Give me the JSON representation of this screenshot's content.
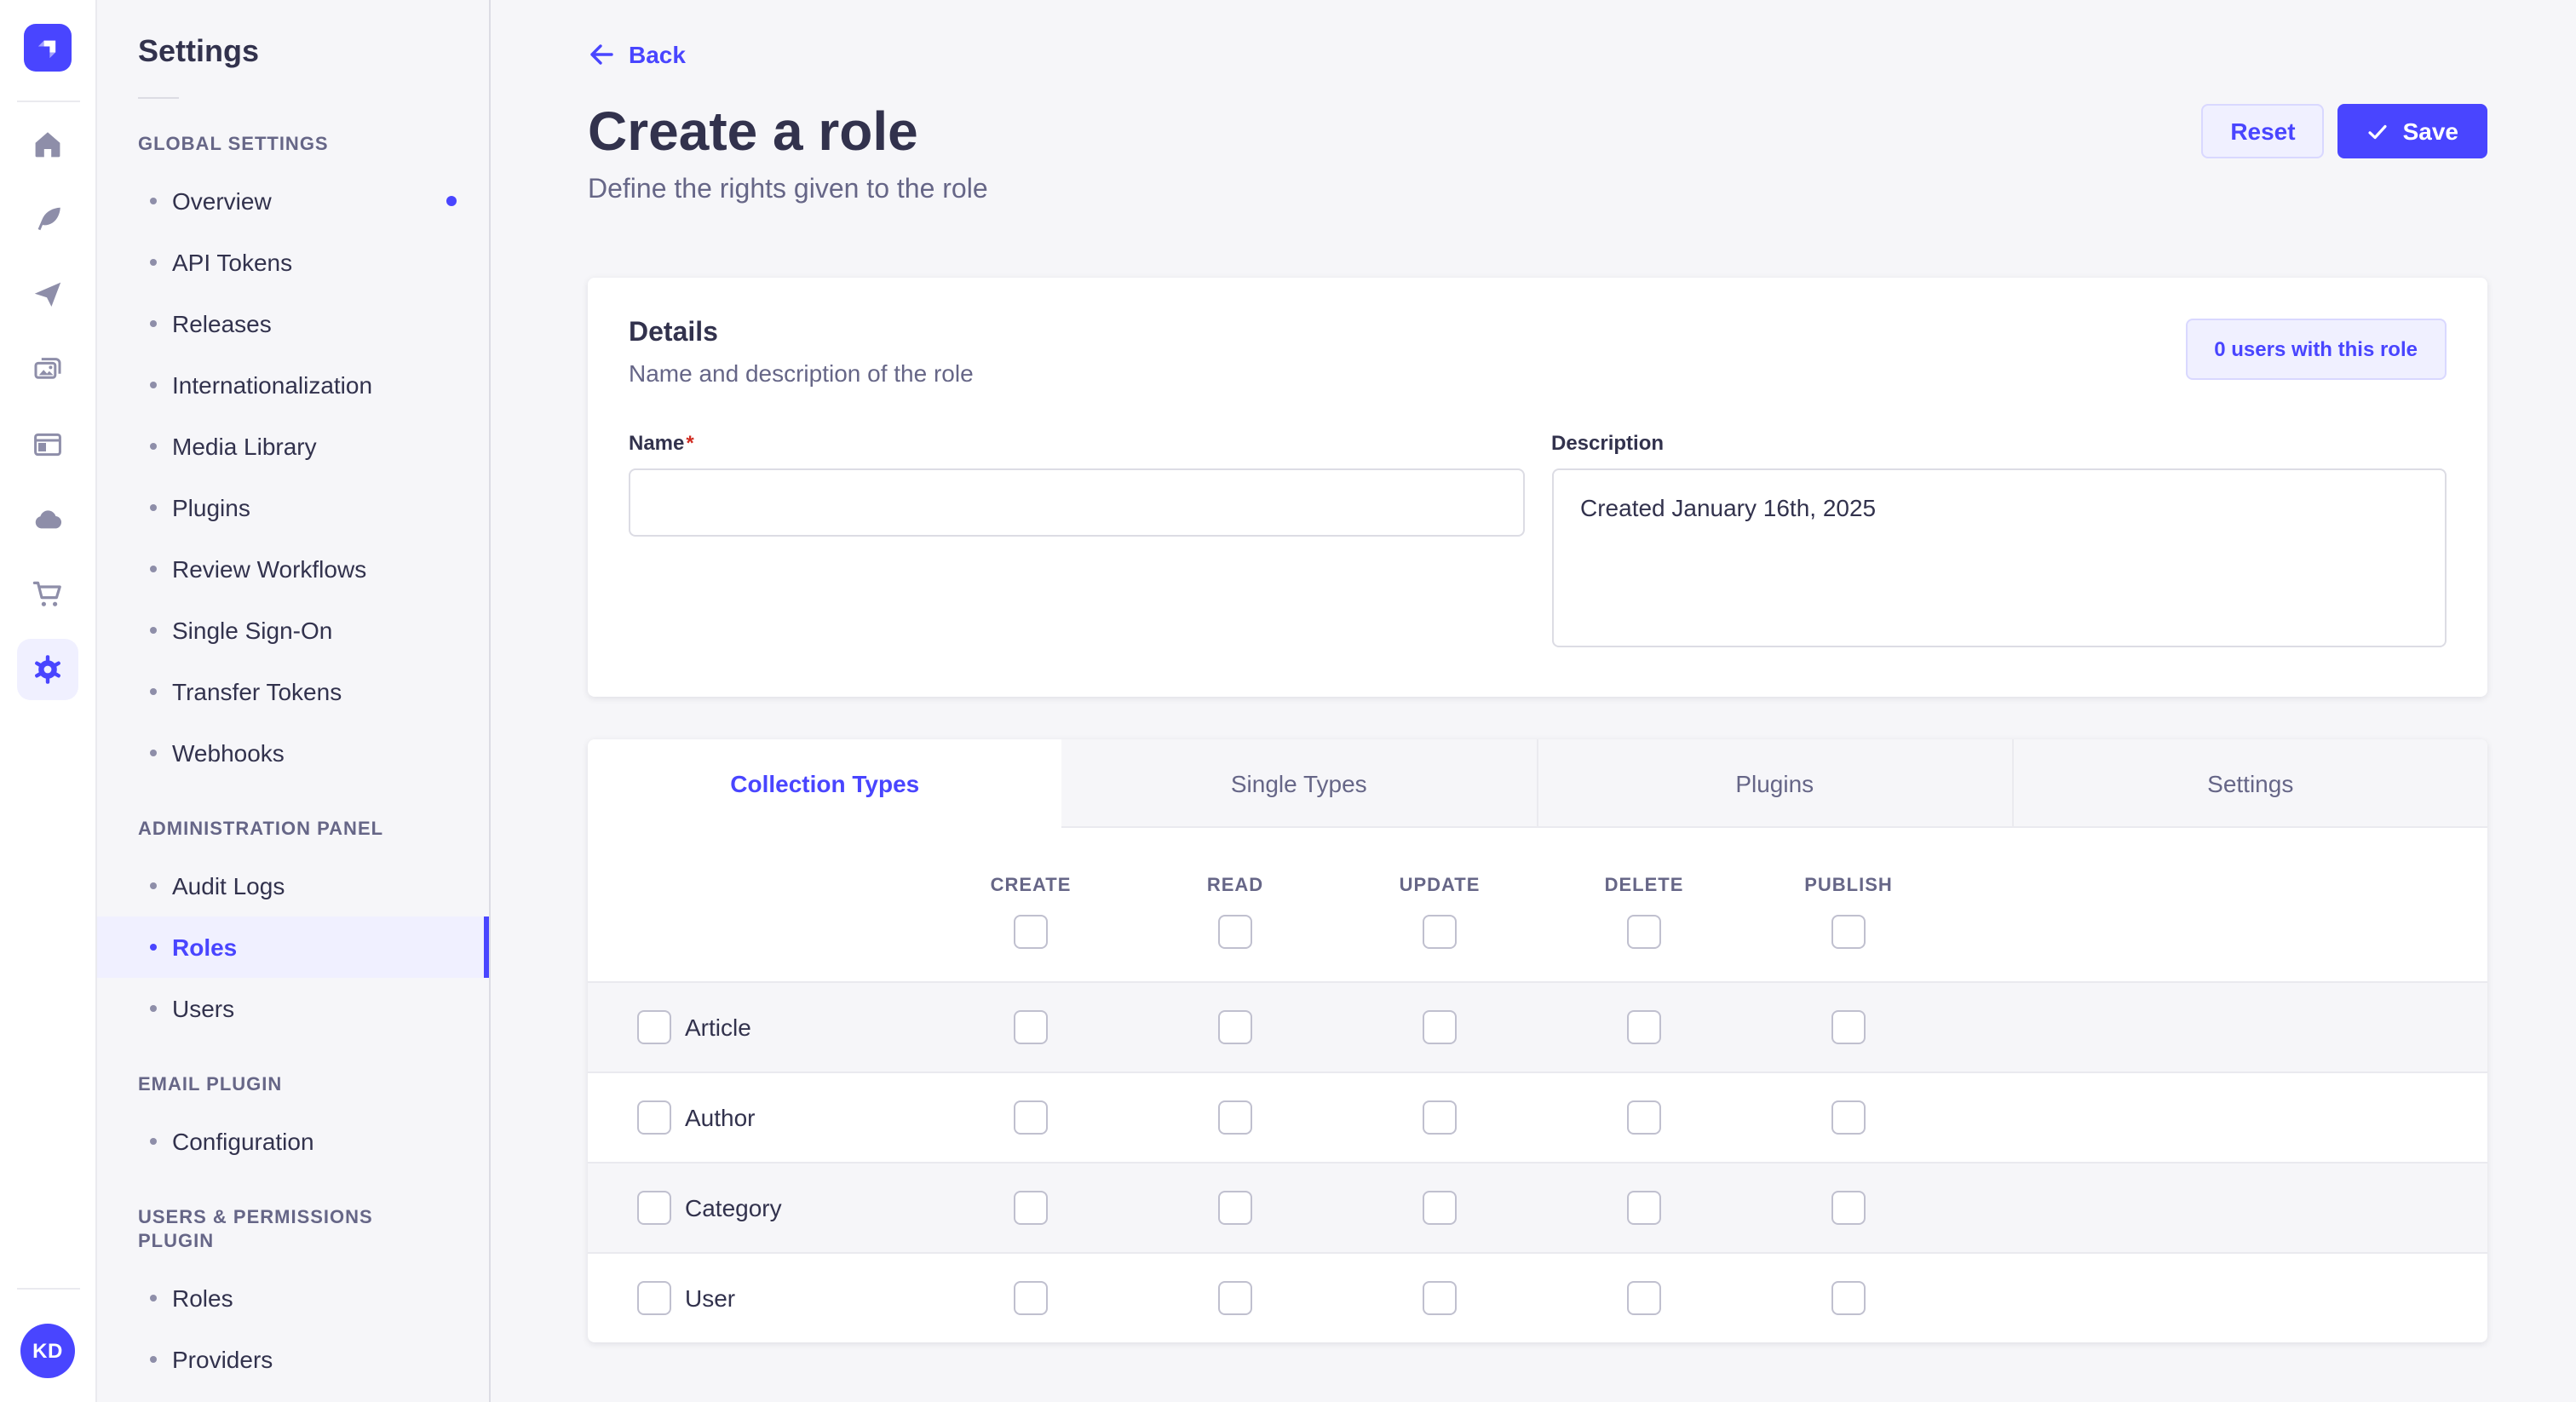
{
  "icon_rail": {
    "icons": [
      {
        "name": "home-icon",
        "active": false
      },
      {
        "name": "content-manager-feather-icon",
        "active": false
      },
      {
        "name": "deploy-paper-plane-icon",
        "active": false
      },
      {
        "name": "media-library-images-icon",
        "active": false
      },
      {
        "name": "content-type-builder-layout-icon",
        "active": false
      },
      {
        "name": "strapi-cloud-icon",
        "active": false
      },
      {
        "name": "marketplace-cart-icon",
        "active": false
      },
      {
        "name": "settings-gear-icon",
        "active": true
      }
    ],
    "avatar_initials": "KD"
  },
  "sidebar": {
    "title": "Settings",
    "sections": [
      {
        "label": "GLOBAL SETTINGS",
        "items": [
          {
            "label": "Overview",
            "notification": true
          },
          {
            "label": "API Tokens"
          },
          {
            "label": "Releases"
          },
          {
            "label": "Internationalization"
          },
          {
            "label": "Media Library"
          },
          {
            "label": "Plugins"
          },
          {
            "label": "Review Workflows"
          },
          {
            "label": "Single Sign-On"
          },
          {
            "label": "Transfer Tokens"
          },
          {
            "label": "Webhooks"
          }
        ]
      },
      {
        "label": "ADMINISTRATION PANEL",
        "items": [
          {
            "label": "Audit Logs"
          },
          {
            "label": "Roles",
            "active": true
          },
          {
            "label": "Users"
          }
        ]
      },
      {
        "label": "EMAIL PLUGIN",
        "items": [
          {
            "label": "Configuration"
          }
        ]
      },
      {
        "label": "USERS & PERMISSIONS PLUGIN",
        "items": [
          {
            "label": "Roles"
          },
          {
            "label": "Providers"
          }
        ]
      }
    ]
  },
  "header": {
    "back_label": "Back",
    "title": "Create a role",
    "subtitle": "Define the rights given to the role",
    "reset_label": "Reset",
    "save_label": "Save"
  },
  "details_card": {
    "title": "Details",
    "subtitle": "Name and description of the role",
    "users_badge": "0 users with this role",
    "name_label": "Name",
    "required_asterisk": "*",
    "name_value": "",
    "description_label": "Description",
    "description_value": "Created January 16th, 2025"
  },
  "permissions_card": {
    "tabs": [
      {
        "label": "Collection Types",
        "active": true
      },
      {
        "label": "Single Types",
        "active": false
      },
      {
        "label": "Plugins",
        "active": false
      },
      {
        "label": "Settings",
        "active": false
      }
    ],
    "columns": [
      "CREATE",
      "READ",
      "UPDATE",
      "DELETE",
      "PUBLISH"
    ],
    "select_all": [
      false,
      false,
      false,
      false,
      false
    ],
    "rows": [
      {
        "label": "Article",
        "checked": false,
        "permissions": [
          false,
          false,
          false,
          false,
          false
        ]
      },
      {
        "label": "Author",
        "checked": false,
        "permissions": [
          false,
          false,
          false,
          false,
          false
        ]
      },
      {
        "label": "Category",
        "checked": false,
        "permissions": [
          false,
          false,
          false,
          false,
          false
        ]
      },
      {
        "label": "User",
        "checked": false,
        "permissions": [
          false,
          false,
          false,
          false,
          false
        ]
      }
    ]
  },
  "colors": {
    "primary": "#4945ff",
    "primary_bg": "#f0f0ff",
    "background": "#f6f6f9",
    "text": "#32324d",
    "text_secondary": "#666687"
  }
}
